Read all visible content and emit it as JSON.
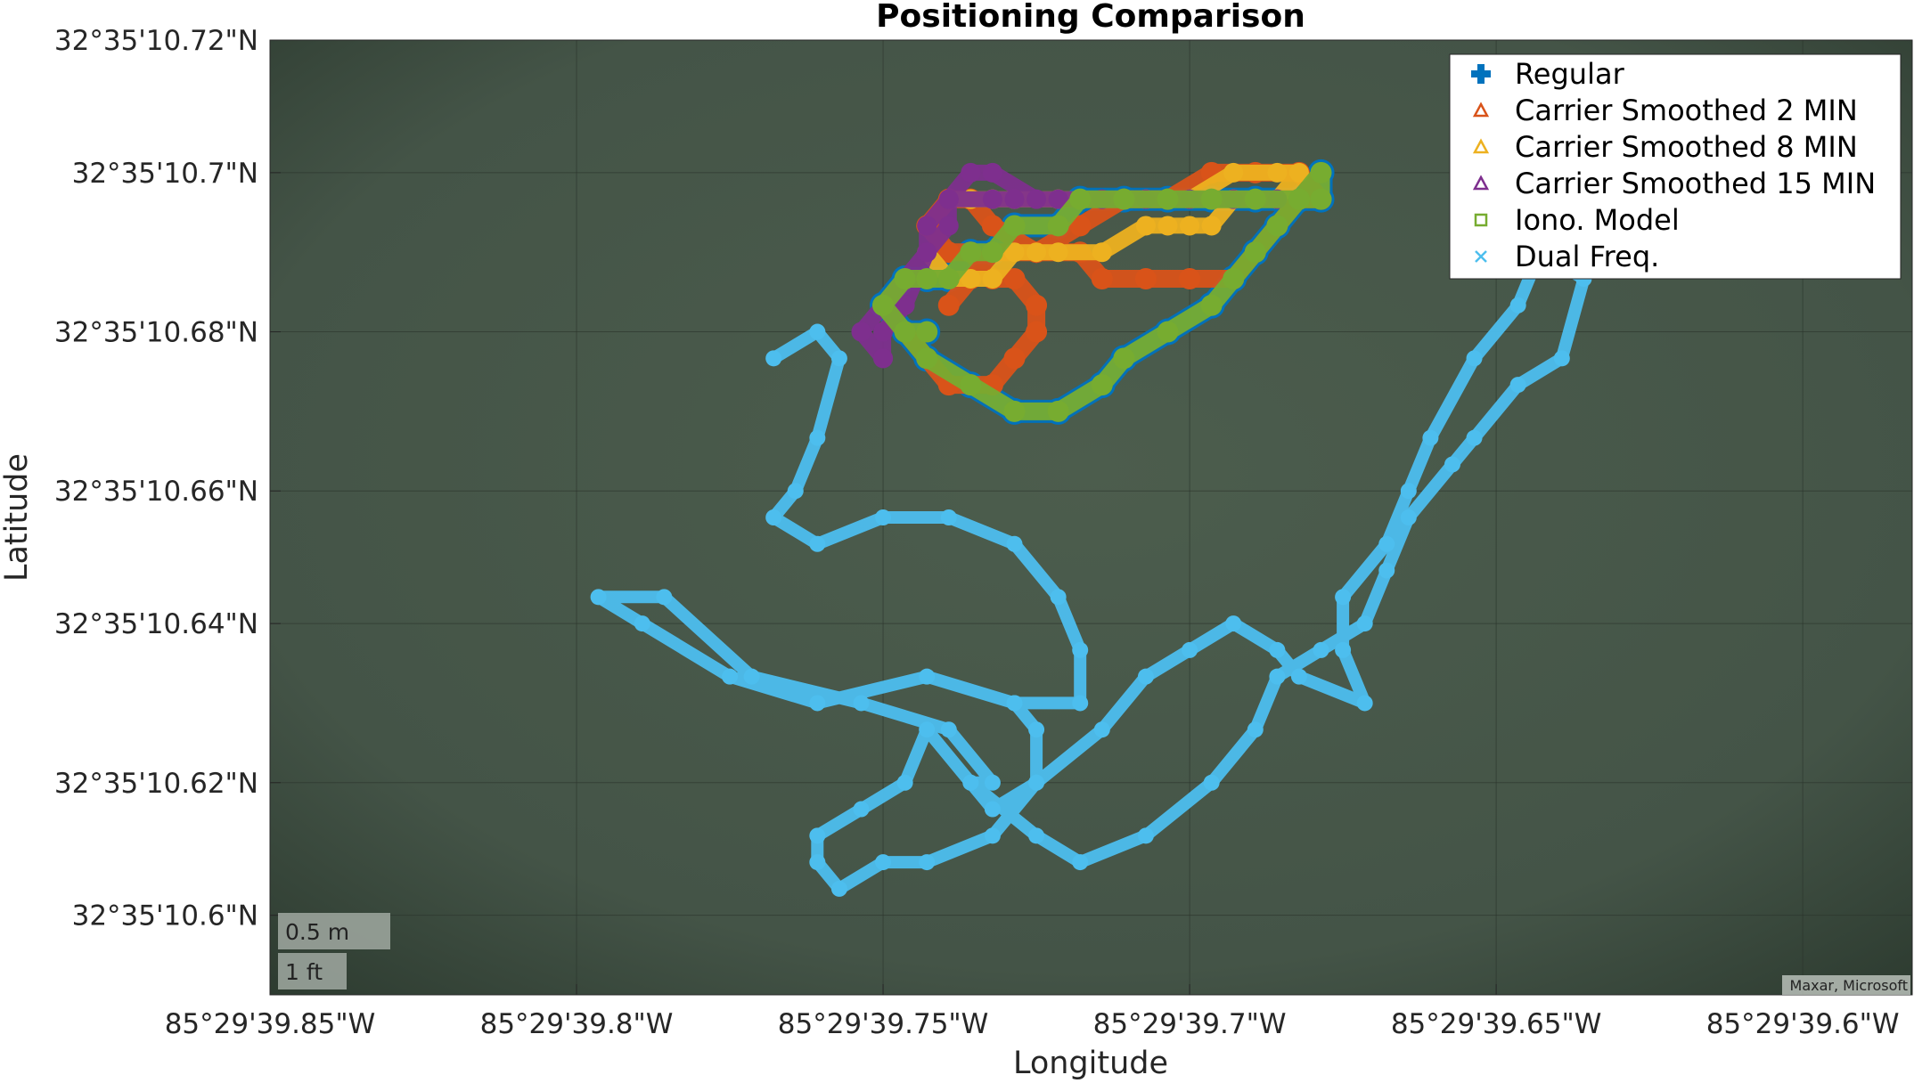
{
  "chart_data": {
    "type": "scatter",
    "title": "Positioning Comparison",
    "xlabel": "Longitude",
    "ylabel": "Latitude",
    "x_ticks": [
      "85°29'39.85\"W",
      "85°29'39.8\"W",
      "85°29'39.75\"W",
      "85°29'39.7\"W",
      "85°29'39.65\"W",
      "85°29'39.6\"W"
    ],
    "x_tick_values": [
      -85.494403,
      -85.494389,
      -85.494375,
      -85.494361,
      -85.494347,
      -85.494333
    ],
    "y_ticks": [
      "32°35'10.72\"N",
      "32°35'10.7\"N",
      "32°35'10.68\"N",
      "32°35'10.66\"N",
      "32°35'10.64\"N",
      "32°35'10.62\"N",
      "32°35'10.6\"N"
    ],
    "y_tick_values": [
      32.586311,
      32.586306,
      32.5863,
      32.586294,
      32.586289,
      32.586283,
      32.586278
    ],
    "xlim": [
      -85.494403,
      -85.494328
    ],
    "ylim": [
      32.586275,
      32.586311
    ],
    "grid": true,
    "legend_position": "top-right",
    "basemap_attribution": "Maxar, Microsoft",
    "scale_bar": {
      "metric": "0.5 m",
      "imperial": "1 ft"
    },
    "series": [
      {
        "name": "Regular",
        "marker": "plus",
        "color": "#0072BD",
        "x": [
          -85.494375,
          -85.494374,
          -85.494373,
          -85.494371,
          -85.494369,
          -85.494367,
          -85.494365,
          -85.494364,
          -85.494362,
          -85.49436,
          -85.494359,
          -85.494358,
          -85.494357,
          -85.494356,
          -85.494355,
          -85.494355,
          -85.494356,
          -85.494358,
          -85.49436,
          -85.494362,
          -85.494364,
          -85.494366,
          -85.494367,
          -85.494369,
          -85.49437,
          -85.494371,
          -85.494372,
          -85.494373,
          -85.494374,
          -85.494375,
          -85.494374,
          -85.494373
        ],
        "y": [
          32.586301,
          32.5863,
          32.586299,
          32.586298,
          32.586297,
          32.586297,
          32.586298,
          32.586299,
          32.5863,
          32.586301,
          32.586302,
          32.586303,
          32.586304,
          32.586305,
          32.586306,
          32.586305,
          32.586305,
          32.586305,
          32.586305,
          32.586305,
          32.586305,
          32.586305,
          32.586304,
          32.586304,
          32.586303,
          32.586303,
          32.586302,
          32.586302,
          32.586302,
          32.586301,
          32.5863,
          32.5863
        ]
      },
      {
        "name": "Carrier Smoothed 2 MIN",
        "marker": "triangle",
        "color": "#D95319",
        "x": [
          -85.494374,
          -85.494373,
          -85.494372,
          -85.494371,
          -85.49437,
          -85.494369,
          -85.494368,
          -85.494368,
          -85.494369,
          -85.49437,
          -85.494371,
          -85.494372,
          -85.494373,
          -85.494372,
          -85.494371,
          -85.49437,
          -85.494368,
          -85.494366,
          -85.494365,
          -85.494363,
          -85.494361,
          -85.494359,
          -85.494358,
          -85.494357,
          -85.494356,
          -85.494355,
          -85.494356,
          -85.494358,
          -85.49436,
          -85.494362,
          -85.494364,
          -85.494366,
          -85.494368,
          -85.49437,
          -85.494371,
          -85.494372
        ],
        "y": [
          32.5863,
          32.586299,
          32.586298,
          32.586298,
          32.586298,
          32.586299,
          32.5863,
          32.586301,
          32.586302,
          32.586302,
          32.586303,
          32.586303,
          32.586304,
          32.586305,
          32.586305,
          32.586304,
          32.586303,
          32.586303,
          32.586302,
          32.586302,
          32.586302,
          32.586302,
          32.586303,
          32.586304,
          32.586305,
          32.586305,
          32.586306,
          32.586306,
          32.586306,
          32.586305,
          32.586305,
          32.586304,
          32.586303,
          32.586303,
          32.586302,
          32.586301
        ]
      },
      {
        "name": "Carrier Smoothed 8 MIN",
        "marker": "triangle",
        "color": "#EDB120",
        "x": [
          -85.494373,
          -85.494372,
          -85.494371,
          -85.49437,
          -85.494369,
          -85.494368,
          -85.494367,
          -85.494365,
          -85.494363,
          -85.494362,
          -85.494361,
          -85.49436,
          -85.494359,
          -85.494358,
          -85.494357,
          -85.494356,
          -85.494357,
          -85.494359,
          -85.494361,
          -85.494363,
          -85.494364,
          -85.494366,
          -85.494367,
          -85.494369,
          -85.49437,
          -85.494371,
          -85.494372
        ],
        "y": [
          32.586303,
          32.586302,
          32.586302,
          32.586302,
          32.586303,
          32.586303,
          32.586303,
          32.586303,
          32.586304,
          32.586304,
          32.586304,
          32.586304,
          32.586305,
          32.586305,
          32.586305,
          32.586306,
          32.586306,
          32.586306,
          32.586305,
          32.586305,
          32.586305,
          32.586305,
          32.586305,
          32.586305,
          32.586305,
          32.586305,
          32.586305
        ]
      },
      {
        "name": "Carrier Smoothed 15 MIN",
        "marker": "triangle",
        "color": "#7E2F8E",
        "x": [
          -85.494375,
          -85.494376,
          -85.494375,
          -85.494374,
          -85.494373,
          -85.494372,
          -85.494372,
          -85.494371,
          -85.49437,
          -85.494368,
          -85.494366,
          -85.494364,
          -85.494362,
          -85.49436,
          -85.494358,
          -85.494357,
          -85.494359,
          -85.494361,
          -85.494363,
          -85.494365,
          -85.494367,
          -85.494369,
          -85.49437,
          -85.494372,
          -85.494373,
          -85.494373,
          -85.494374,
          -85.494375,
          -85.494375
        ],
        "y": [
          32.586299,
          32.5863,
          32.586301,
          32.586302,
          32.586303,
          32.586304,
          32.586305,
          32.586306,
          32.586306,
          32.586305,
          32.586305,
          32.586305,
          32.586305,
          32.586305,
          32.586305,
          32.586305,
          32.586305,
          32.586305,
          32.586305,
          32.586305,
          32.586305,
          32.586305,
          32.586305,
          32.586305,
          32.586304,
          32.586303,
          32.586301,
          32.5863,
          32.586299
        ]
      },
      {
        "name": "Iono. Model",
        "marker": "square",
        "color": "#77AC30",
        "x": [
          -85.494375,
          -85.494374,
          -85.494373,
          -85.494371,
          -85.494369,
          -85.494367,
          -85.494365,
          -85.494364,
          -85.494362,
          -85.49436,
          -85.494359,
          -85.494358,
          -85.494357,
          -85.494356,
          -85.494355,
          -85.494355,
          -85.494356,
          -85.494358,
          -85.49436,
          -85.494362,
          -85.494364,
          -85.494366,
          -85.494367,
          -85.494369,
          -85.49437,
          -85.494371,
          -85.494372,
          -85.494373,
          -85.494374,
          -85.494375,
          -85.494374,
          -85.494373
        ],
        "y": [
          32.586301,
          32.5863,
          32.586299,
          32.586298,
          32.586297,
          32.586297,
          32.586298,
          32.586299,
          32.5863,
          32.586301,
          32.586302,
          32.586303,
          32.586304,
          32.586305,
          32.586306,
          32.586305,
          32.586305,
          32.586305,
          32.586305,
          32.586305,
          32.586305,
          32.586305,
          32.586304,
          32.586304,
          32.586303,
          32.586303,
          32.586302,
          32.586302,
          32.586302,
          32.586301,
          32.5863,
          32.5863
        ]
      },
      {
        "name": "Dual Freq.",
        "marker": "x",
        "color": "#4DBEEE",
        "x": [
          -85.49438,
          -85.494378,
          -85.494377,
          -85.494378,
          -85.494379,
          -85.49438,
          -85.494378,
          -85.494375,
          -85.494372,
          -85.494369,
          -85.494367,
          -85.494366,
          -85.494366,
          -85.494369,
          -85.494373,
          -85.494378,
          -85.494382,
          -85.494386,
          -85.494388,
          -85.494385,
          -85.494381,
          -85.494376,
          -85.494372,
          -85.49437,
          -85.494371,
          -85.494368,
          -85.494366,
          -85.494363,
          -85.49436,
          -85.494358,
          -85.494357,
          -85.494355,
          -85.494353,
          -85.494352,
          -85.494351,
          -85.494349,
          -85.494348,
          -85.494346,
          -85.494344,
          -85.494343,
          -85.494345,
          -85.494346,
          -85.494348,
          -85.49435,
          -85.494351,
          -85.494352,
          -85.494354,
          -85.494354,
          -85.494353,
          -85.494356,
          -85.494357,
          -85.494359,
          -85.494361,
          -85.494363,
          -85.494365,
          -85.494368,
          -85.49437,
          -85.494371,
          -85.494373,
          -85.494374,
          -85.494376,
          -85.494378,
          -85.494378,
          -85.494377,
          -85.494375,
          -85.494373,
          -85.49437,
          -85.494368,
          -85.494368,
          -85.494369
        ],
        "y": [
          32.586299,
          32.5863,
          32.586299,
          32.586296,
          32.586294,
          32.586293,
          32.586292,
          32.586293,
          32.586293,
          32.586292,
          32.58629,
          32.586288,
          32.586286,
          32.586286,
          32.586287,
          32.586286,
          32.586287,
          32.586289,
          32.58629,
          32.58629,
          32.586287,
          32.586286,
          32.586285,
          32.586283,
          32.586283,
          32.586281,
          32.58628,
          32.586281,
          32.586283,
          32.586285,
          32.586287,
          32.586288,
          32.586289,
          32.586291,
          32.586293,
          32.586295,
          32.586296,
          32.586298,
          32.586299,
          32.586302,
          32.586303,
          32.586301,
          32.586299,
          32.586296,
          32.586294,
          32.586292,
          32.58629,
          32.586288,
          32.586286,
          32.586287,
          32.586288,
          32.586289,
          32.586288,
          32.586287,
          32.586285,
          32.586283,
          32.586282,
          32.586283,
          32.586285,
          32.586283,
          32.586282,
          32.586281,
          32.58628,
          32.586279,
          32.58628,
          32.58628,
          32.586281,
          32.586283,
          32.586285,
          32.586286
        ]
      }
    ]
  }
}
